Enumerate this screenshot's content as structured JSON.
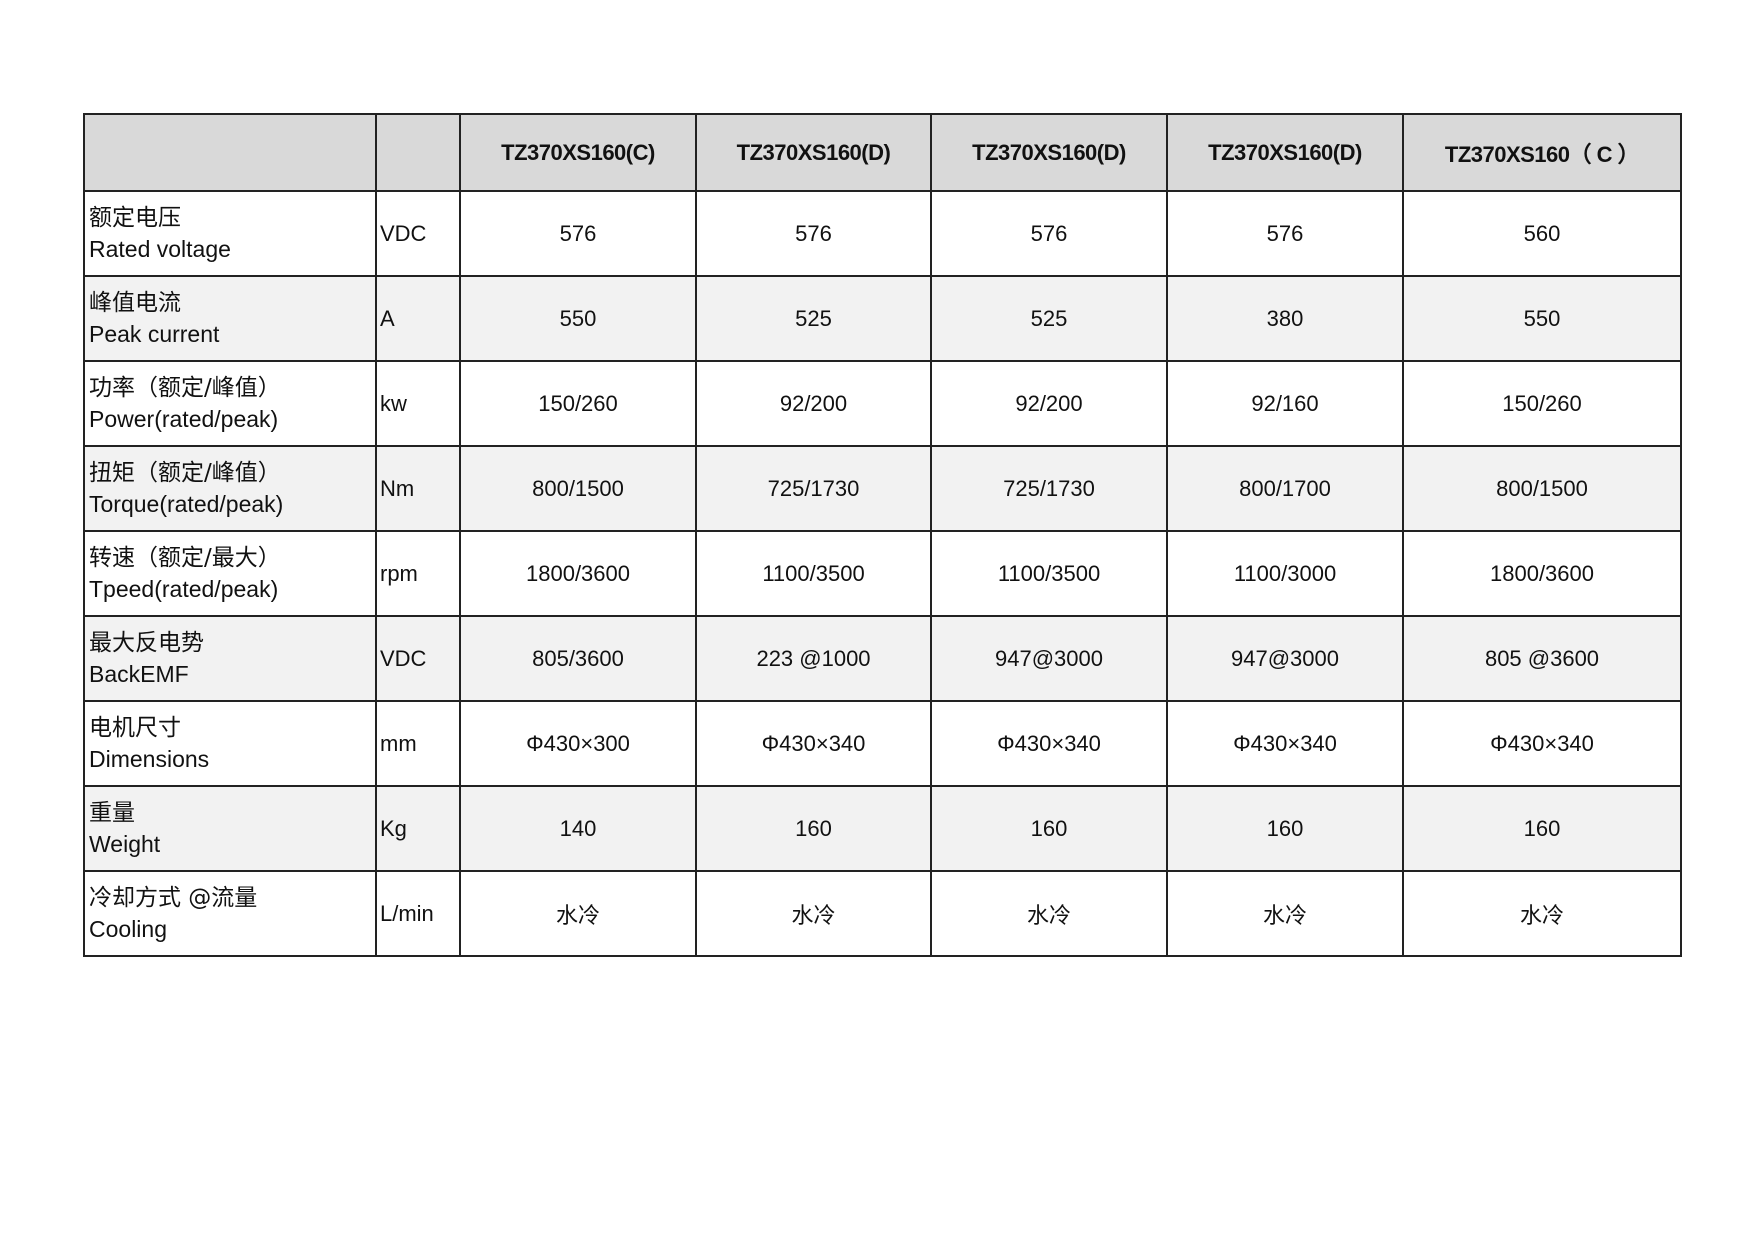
{
  "header": [
    "",
    "",
    "TZ370XS160(C)",
    "TZ370XS160(D)",
    "TZ370XS160(D)",
    "TZ370XS160(D)",
    "TZ370XS160（ C ）"
  ],
  "rows": [
    {
      "zh": "额定电压",
      "en": "Rated voltage",
      "unit": "VDC",
      "values": [
        "576",
        "576",
        "576",
        "576",
        "560"
      ]
    },
    {
      "zh": "峰值电流",
      "en": "Peak current",
      "unit": "A",
      "values": [
        "550",
        "525",
        "525",
        "380",
        "550"
      ]
    },
    {
      "zh": "功率（额定/峰值）",
      "en": "Power(rated/peak)",
      "unit": "kw",
      "values": [
        "150/260",
        "92/200",
        "92/200",
        "92/160",
        "150/260"
      ]
    },
    {
      "zh": "扭矩（额定/峰值）",
      "en": "Torque(rated/peak)",
      "unit": "Nm",
      "values": [
        "800/1500",
        "725/1730",
        "725/1730",
        "800/1700",
        "800/1500"
      ]
    },
    {
      "zh": "转速（额定/最大）",
      "en": "Tpeed(rated/peak)",
      "unit": "rpm",
      "values": [
        "1800/3600",
        "1100/3500",
        "1100/3500",
        "1100/3000",
        "1800/3600"
      ]
    },
    {
      "zh": "最大反电势",
      "en": "BackEMF",
      "unit": "VDC",
      "values": [
        "805/3600",
        "223 @1000",
        "947@3000",
        "947@3000",
        "805 @3600"
      ]
    },
    {
      "zh": "电机尺寸",
      "en": "Dimensions",
      "unit": "mm",
      "values": [
        "Φ430×300",
        "Φ430×340",
        "Φ430×340",
        "Φ430×340",
        "Φ430×340"
      ]
    },
    {
      "zh": "重量",
      "en": "Weight",
      "unit": "Kg",
      "values": [
        "140",
        "160",
        "160",
        "160",
        "160"
      ]
    },
    {
      "zh": "冷却方式 @流量",
      "en": "Cooling",
      "unit": "L/min",
      "values": [
        "水冷",
        "水冷",
        "水冷",
        "水冷",
        "水冷"
      ]
    }
  ]
}
